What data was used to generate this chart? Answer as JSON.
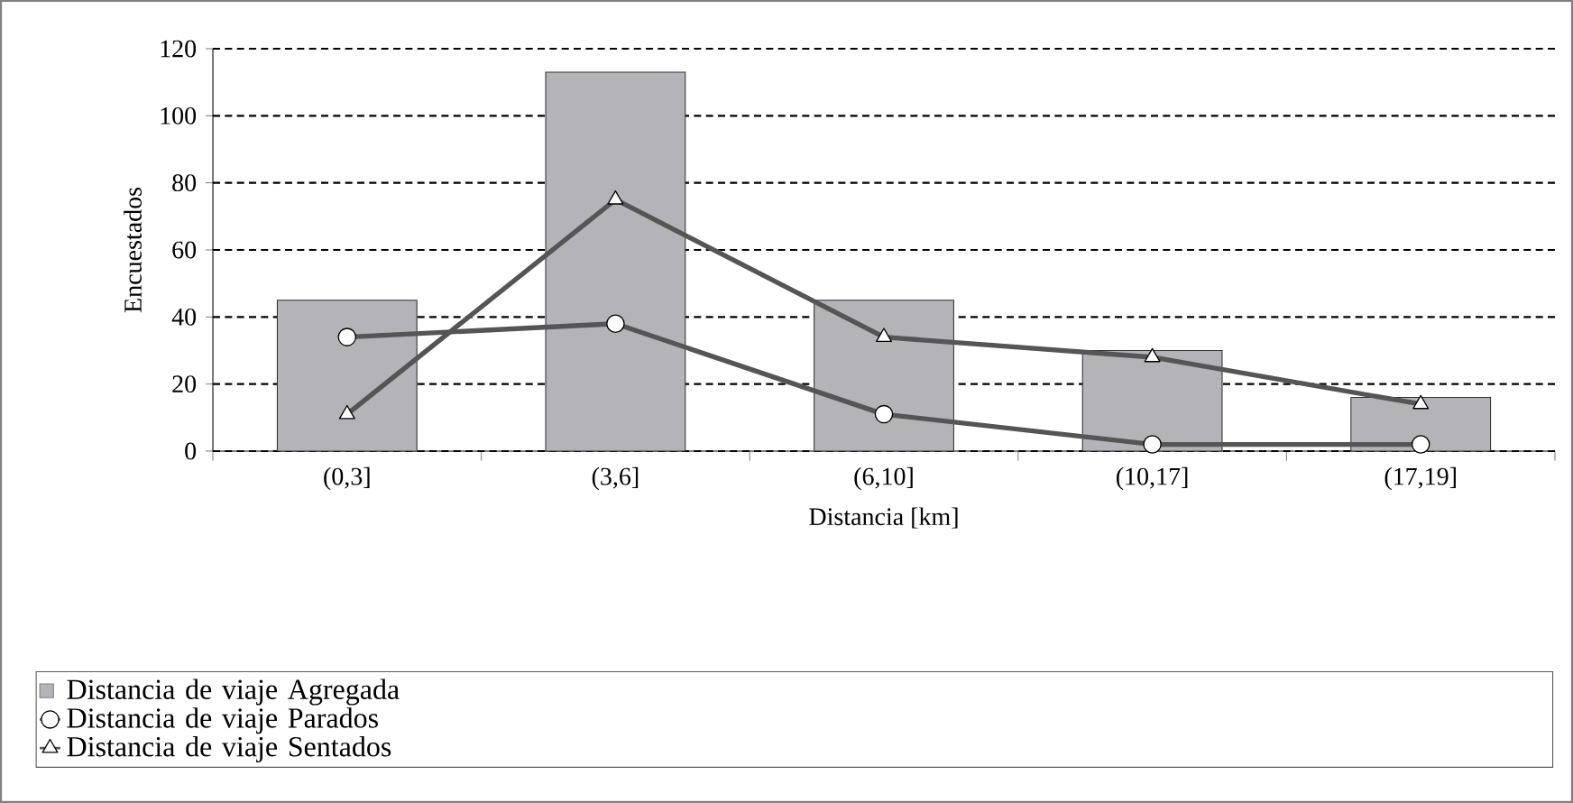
{
  "chart_data": {
    "type": "bar",
    "xlabel": "Distancia [km]",
    "ylabel": "Encuestados",
    "categories": [
      "(0,3]",
      "(3,6]",
      "(6,10]",
      "(10,17]",
      "(17,19]"
    ],
    "series": [
      {
        "name": "Distancia de viaje Agregada",
        "color": "#b3b3b8",
        "values": [
          45,
          113,
          45,
          30,
          16
        ]
      },
      {
        "name": "Distancia de viaje Parados",
        "type": "line",
        "color": "#555555",
        "marker": "circle",
        "values": [
          34,
          38,
          11,
          2,
          2
        ]
      },
      {
        "name": "Distancia de viaje Sentados",
        "type": "line",
        "color": "#555555",
        "marker": "triangle",
        "values": [
          11,
          75,
          34,
          28,
          14
        ]
      }
    ],
    "ylim": [
      0,
      120
    ],
    "yticks": [
      0,
      20,
      40,
      60,
      80,
      100,
      120
    ],
    "grid": "y",
    "legend": "bottom"
  }
}
